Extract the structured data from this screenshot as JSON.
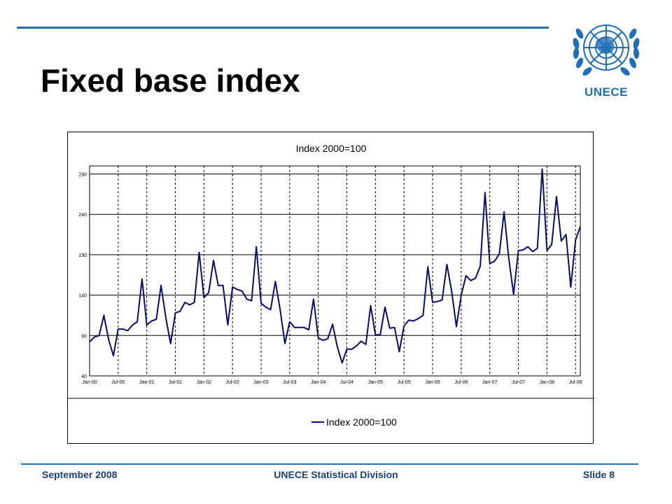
{
  "slide": {
    "title": "Fixed base index",
    "logo_text": "UNECE",
    "footer_left": "September 2008",
    "footer_center": "UNECE Statistical Division",
    "footer_right": "Slide 8"
  },
  "colors": {
    "accent": "#2a6db0",
    "footer_text": "#1a3f7a",
    "logo_blue": "#1e6fb8",
    "series_line": "#0a0a78"
  },
  "chart_data": {
    "type": "line",
    "title": "Index 2000=100",
    "xlabel": "",
    "ylabel": "",
    "ylim": [
      40,
      300
    ],
    "yticks": [
      40,
      90,
      140,
      190,
      240,
      290
    ],
    "grid": true,
    "legend_position": "bottom",
    "x_tick_labels": [
      "Jan-00",
      "Jul-00",
      "Jan-01",
      "Jul-01",
      "Jan-02",
      "Jul-02",
      "Jan-03",
      "Jul-03",
      "Jan-04",
      "Jul-04",
      "Jan-05",
      "Jul-05",
      "Jan-06",
      "Jul-06",
      "Jan-07",
      "Jul-07",
      "Jan-08",
      "Jul-08"
    ],
    "series": [
      {
        "name": "Index 2000=100",
        "values": [
          82,
          88,
          90,
          115,
          85,
          65,
          98,
          98,
          96,
          103,
          107,
          160,
          103,
          108,
          110,
          152,
          112,
          80,
          118,
          120,
          131,
          128,
          131,
          193,
          137,
          143,
          183,
          152,
          152,
          103,
          150,
          147,
          145,
          135,
          133,
          200,
          130,
          125,
          122,
          157,
          122,
          80,
          107,
          100,
          100,
          100,
          97,
          135,
          87,
          84,
          86,
          104,
          76,
          56,
          73,
          73,
          77,
          83,
          79,
          127,
          91,
          91,
          125,
          99,
          100,
          70,
          102,
          109,
          108,
          111,
          115,
          175,
          131,
          132,
          134,
          178,
          145,
          101,
          140,
          164,
          158,
          161,
          176,
          267,
          179,
          182,
          191,
          243,
          185,
          141,
          195,
          196,
          200,
          194,
          198,
          296,
          195,
          203,
          262,
          207,
          215,
          150,
          208,
          225
        ]
      }
    ]
  }
}
